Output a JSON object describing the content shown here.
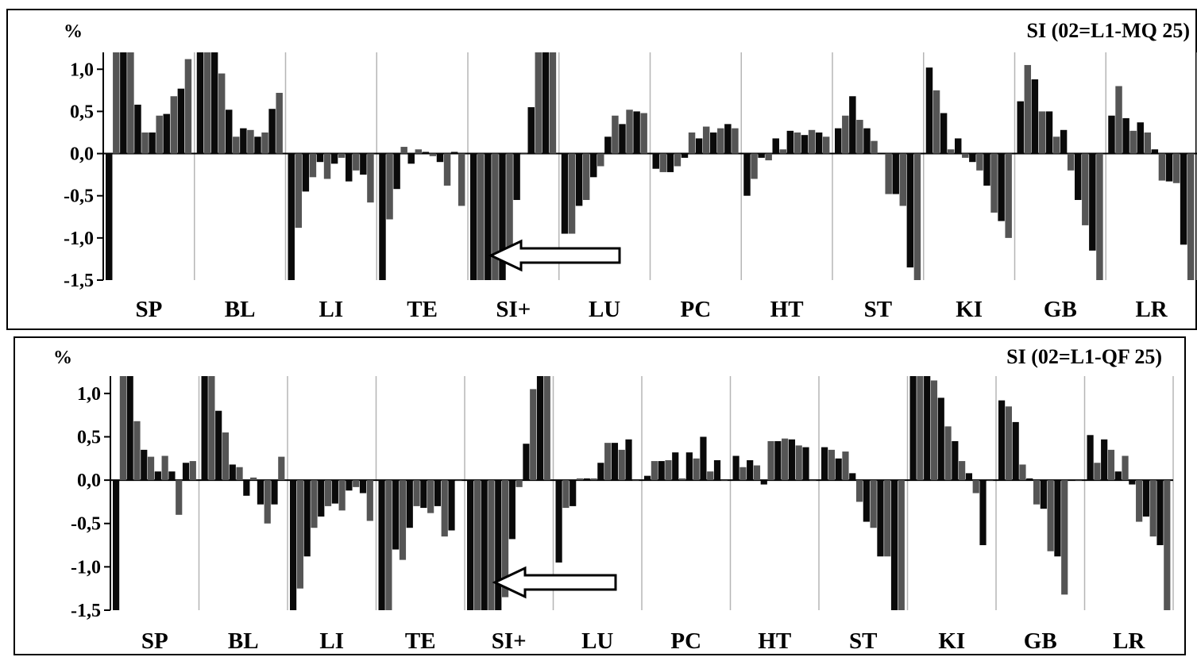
{
  "chart_data": [
    {
      "type": "bar",
      "title": "SI (02=L1-MQ 25)",
      "ylabel": "%",
      "ylim": [
        -1.5,
        1.2
      ],
      "yticks": [
        "1,0",
        "0,5",
        "0,0",
        "-0,5",
        "-1,0",
        "-1,5"
      ],
      "ytick_values": [
        1.0,
        0.5,
        0.0,
        -0.5,
        -1.0,
        -1.5
      ],
      "categories": [
        "SP",
        "BL",
        "LI",
        "TE",
        "SI+",
        "LU",
        "PC",
        "HT",
        "ST",
        "KI",
        "GB",
        "LR"
      ],
      "annotation": "arrow pointing to SI+ minimum",
      "grid": "vertical",
      "values": [
        [
          -1.5,
          1.2,
          1.2,
          1.2,
          0.58,
          0.25,
          0.25,
          0.45,
          0.47,
          0.68,
          0.77,
          1.12
        ],
        [
          1.2,
          1.2,
          1.2,
          0.95,
          0.52,
          0.2,
          0.3,
          0.28,
          0.2,
          0.25,
          0.53,
          0.72
        ],
        [
          -1.5,
          -0.88,
          -0.45,
          -0.28,
          -0.1,
          -0.3,
          -0.12,
          -0.05,
          -0.33,
          -0.2,
          -0.25,
          -0.58
        ],
        [
          -1.5,
          -0.78,
          -0.42,
          0.08,
          -0.12,
          0.05,
          0.02,
          -0.03,
          -0.1,
          -0.38,
          0.02,
          -0.62
        ],
        [
          -1.5,
          -1.5,
          -1.5,
          -1.5,
          -1.5,
          -1.2,
          -0.55,
          0.0,
          0.55,
          1.2,
          1.2,
          1.2
        ],
        [
          -0.95,
          -0.95,
          -0.62,
          -0.55,
          -0.28,
          -0.15,
          0.2,
          0.45,
          0.35,
          0.52,
          0.5,
          0.48
        ],
        [
          -0.18,
          -0.22,
          -0.22,
          -0.15,
          -0.05,
          0.25,
          0.18,
          0.32,
          0.25,
          0.3,
          0.35,
          0.3
        ],
        [
          -0.5,
          -0.3,
          -0.05,
          -0.08,
          0.18,
          0.05,
          0.27,
          0.25,
          0.22,
          0.28,
          0.25,
          0.2
        ],
        [
          0.3,
          0.45,
          0.68,
          0.4,
          0.3,
          0.15,
          0.0,
          -0.48,
          -0.48,
          -0.62,
          -1.35,
          -1.5
        ],
        [
          1.02,
          0.75,
          0.48,
          0.05,
          0.18,
          -0.05,
          -0.1,
          -0.2,
          -0.38,
          -0.7,
          -0.8,
          -1.0
        ],
        [
          0.62,
          1.05,
          0.88,
          0.5,
          0.5,
          0.2,
          0.28,
          -0.2,
          -0.55,
          -0.85,
          -1.15,
          -1.5
        ],
        [
          0.45,
          0.8,
          0.42,
          0.27,
          0.37,
          0.25,
          0.05,
          -0.32,
          -0.33,
          -0.35,
          -1.08,
          -1.5
        ]
      ]
    },
    {
      "type": "bar",
      "title": "SI (02=L1-QF 25)",
      "ylabel": "%",
      "ylim": [
        -1.5,
        1.2
      ],
      "yticks": [
        "1,0",
        "0,5",
        "0,0",
        "-0,5",
        "-1,0",
        "-1,5"
      ],
      "ytick_values": [
        1.0,
        0.5,
        0.0,
        -0.5,
        -1.0,
        -1.5
      ],
      "categories": [
        "SP",
        "BL",
        "LI",
        "TE",
        "SI+",
        "LU",
        "PC",
        "HT",
        "ST",
        "KI",
        "GB",
        "LR"
      ],
      "annotation": "arrow pointing to SI+ minimum",
      "grid": "vertical",
      "values": [
        [
          -1.5,
          1.2,
          1.2,
          0.68,
          0.35,
          0.27,
          0.1,
          0.28,
          0.1,
          -0.4,
          0.2,
          0.22
        ],
        [
          1.2,
          1.2,
          0.8,
          0.55,
          0.18,
          0.15,
          -0.18,
          0.03,
          -0.28,
          -0.5,
          -0.28,
          0.27
        ],
        [
          -1.5,
          -1.25,
          -0.88,
          -0.55,
          -0.42,
          -0.3,
          -0.27,
          -0.35,
          -0.12,
          -0.08,
          -0.15,
          -0.47
        ],
        [
          -1.5,
          -1.5,
          -0.8,
          -0.92,
          -0.55,
          -0.3,
          -0.32,
          -0.38,
          -0.3,
          -0.65,
          -0.58,
          0.0
        ],
        [
          -1.5,
          -1.5,
          -1.5,
          -1.5,
          -1.5,
          -1.35,
          -0.68,
          -0.08,
          0.42,
          1.05,
          1.2,
          1.2
        ],
        [
          -0.95,
          -0.32,
          -0.3,
          0.02,
          0.02,
          0.02,
          0.2,
          0.43,
          0.43,
          0.35,
          0.47,
          0.0
        ],
        [
          0.05,
          0.22,
          0.22,
          0.23,
          0.32,
          0.02,
          0.32,
          0.25,
          0.5,
          0.1,
          0.23,
          0.0
        ],
        [
          0.28,
          0.15,
          0.23,
          0.17,
          -0.05,
          0.45,
          0.45,
          0.48,
          0.47,
          0.4,
          0.38,
          0.0
        ],
        [
          0.38,
          0.35,
          0.25,
          0.33,
          0.08,
          -0.25,
          -0.48,
          -0.55,
          -0.88,
          -0.88,
          -1.5,
          -1.5
        ],
        [
          1.2,
          1.2,
          1.2,
          1.15,
          0.95,
          0.62,
          0.45,
          0.22,
          0.08,
          -0.15,
          -0.75,
          0.0
        ],
        [
          0.92,
          0.85,
          0.67,
          0.18,
          0.02,
          -0.28,
          -0.33,
          -0.82,
          -0.88,
          -1.32,
          0.0,
          0.0
        ],
        [
          0.52,
          0.2,
          0.47,
          0.35,
          0.1,
          0.28,
          -0.05,
          -0.48,
          -0.42,
          -0.65,
          -0.75,
          -1.5
        ]
      ]
    }
  ]
}
